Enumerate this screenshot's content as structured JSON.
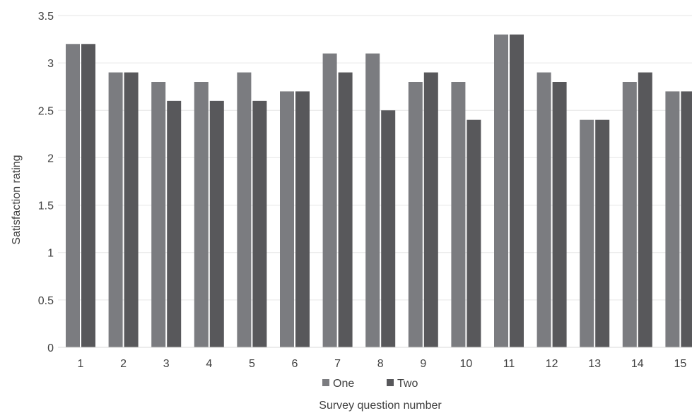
{
  "chart_data": {
    "type": "bar",
    "title": "",
    "xlabel": "Survey question number",
    "ylabel": "Satisfaction rating",
    "ylim": [
      0,
      3.5
    ],
    "yticks": [
      "0",
      "0.5",
      "1",
      "1.5",
      "2",
      "2.5",
      "3",
      "3.5"
    ],
    "grid": true,
    "legend_position": "bottom",
    "categories": [
      "1",
      "2",
      "3",
      "4",
      "5",
      "6",
      "7",
      "8",
      "9",
      "10",
      "11",
      "12",
      "13",
      "14",
      "15"
    ],
    "series": [
      {
        "name": "One",
        "color": "#7b7c80",
        "values": [
          3.2,
          2.9,
          2.8,
          2.8,
          2.9,
          2.7,
          3.1,
          3.1,
          2.8,
          2.8,
          3.3,
          2.9,
          2.4,
          2.8,
          2.7
        ]
      },
      {
        "name": "Two",
        "color": "#58585b",
        "values": [
          3.2,
          2.9,
          2.6,
          2.6,
          2.6,
          2.7,
          2.9,
          2.5,
          2.9,
          2.4,
          3.3,
          2.8,
          2.4,
          2.9,
          2.7
        ]
      }
    ]
  }
}
